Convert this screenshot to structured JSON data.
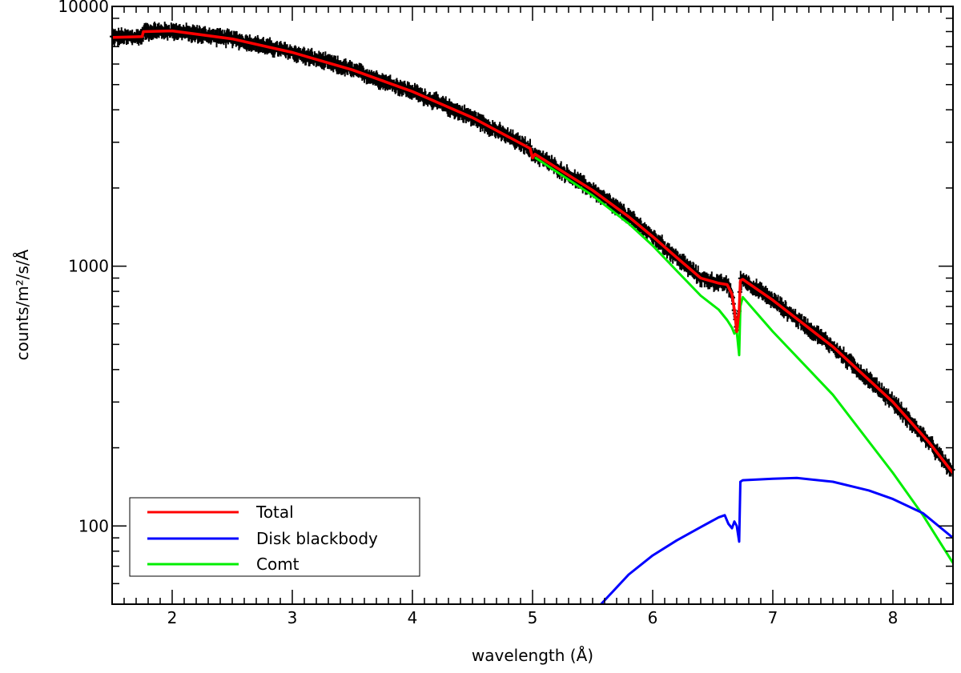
{
  "chart_data": {
    "type": "line",
    "xlabel": "wavelength (Å)",
    "ylabel": "counts/m²/s/Å",
    "xlim": [
      1.5,
      8.5
    ],
    "ylim": [
      50,
      10000
    ],
    "yscale": "log",
    "x_ticks": [
      2,
      3,
      4,
      5,
      6,
      7,
      8
    ],
    "y_ticks": [
      100,
      1000,
      10000
    ],
    "legend_position": "bottom-left",
    "grid": false,
    "colors": {
      "Total": "#ff0000",
      "Disk blackbody": "#0000ff",
      "Comt": "#00ee00",
      "data": "#000000"
    },
    "series": [
      {
        "name": "Total",
        "x": [
          1.5,
          1.75,
          1.76,
          2.0,
          2.5,
          3.0,
          3.5,
          4.0,
          4.5,
          4.98,
          5.0,
          5.02,
          5.5,
          5.8,
          6.0,
          6.2,
          6.4,
          6.55,
          6.62,
          6.66,
          6.68,
          6.7,
          6.72,
          6.73,
          6.75,
          7.0,
          7.5,
          8.0,
          8.3,
          8.5
        ],
        "y": [
          7600,
          7650,
          8000,
          8050,
          7500,
          6650,
          5700,
          4700,
          3730,
          2840,
          2610,
          2700,
          1960,
          1550,
          1300,
          1080,
          900,
          860,
          850,
          780,
          680,
          560,
          680,
          880,
          890,
          740,
          490,
          300,
          210,
          160
        ]
      },
      {
        "name": "Disk blackbody",
        "x": [
          5.57,
          5.8,
          6.0,
          6.2,
          6.4,
          6.55,
          6.6,
          6.63,
          6.66,
          6.68,
          6.7,
          6.72,
          6.73,
          6.75,
          7.0,
          7.2,
          7.5,
          7.8,
          8.0,
          8.25,
          8.5
        ],
        "y": [
          50,
          65,
          77,
          88,
          99,
          108,
          110,
          102,
          98,
          104,
          100,
          87,
          148,
          150,
          152,
          153,
          148,
          137,
          127,
          112,
          90
        ]
      },
      {
        "name": "Comt",
        "x": [
          5.02,
          5.5,
          5.8,
          6.0,
          6.2,
          6.4,
          6.55,
          6.62,
          6.66,
          6.68,
          6.7,
          6.72,
          6.73,
          6.75,
          7.0,
          7.5,
          8.0,
          8.25,
          8.5
        ],
        "y": [
          2620,
          1870,
          1460,
          1200,
          960,
          770,
          680,
          620,
          580,
          550,
          560,
          455,
          700,
          760,
          560,
          320,
          160,
          110,
          72
        ]
      }
    ]
  }
}
